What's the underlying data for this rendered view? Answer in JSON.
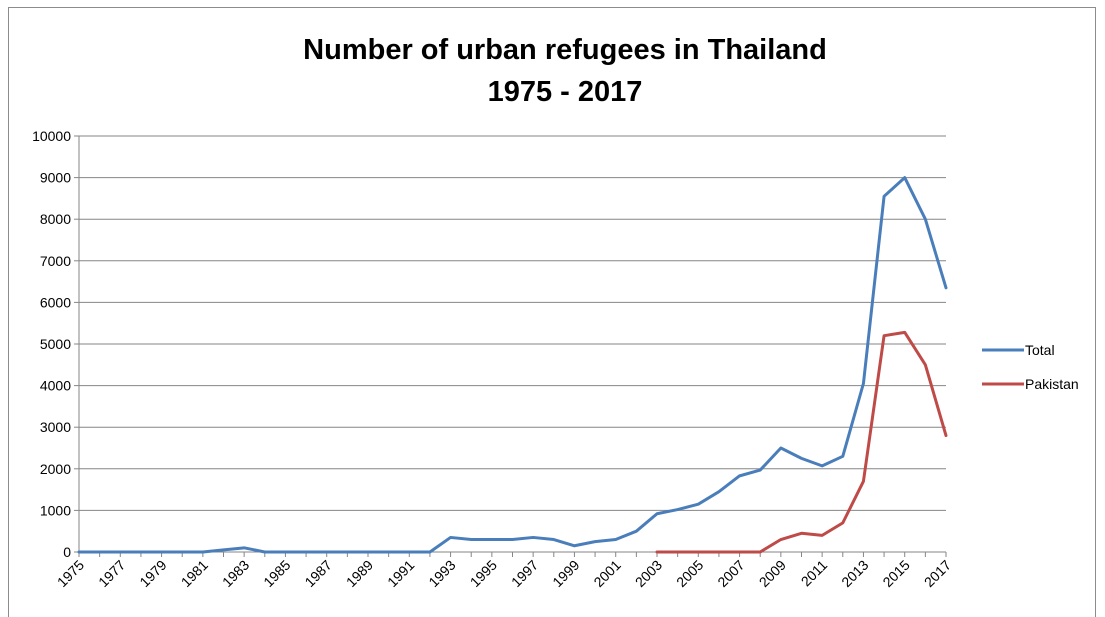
{
  "chart_data": {
    "type": "line",
    "title_lines": [
      "Number of urban refugees in Thailand",
      "1975 - 2017"
    ],
    "xlabel": "",
    "ylabel": "",
    "ylim": [
      0,
      10000
    ],
    "y_ticks": [
      0,
      1000,
      2000,
      3000,
      4000,
      5000,
      6000,
      7000,
      8000,
      9000,
      10000
    ],
    "y_tick_labels": [
      "0",
      "1000",
      "2000",
      "3000",
      "4000",
      "5000",
      "6000",
      "7000",
      "8000",
      "9000",
      "10000"
    ],
    "x": [
      1975,
      1976,
      1977,
      1978,
      1979,
      1980,
      1981,
      1982,
      1983,
      1984,
      1985,
      1986,
      1987,
      1988,
      1989,
      1990,
      1991,
      1992,
      1993,
      1994,
      1995,
      1996,
      1997,
      1998,
      1999,
      2000,
      2001,
      2002,
      2003,
      2004,
      2005,
      2006,
      2007,
      2008,
      2009,
      2010,
      2011,
      2012,
      2013,
      2014,
      2015,
      2016,
      2017
    ],
    "x_tick_labels": [
      "1975",
      "1977",
      "1979",
      "1981",
      "1983",
      "1985",
      "1987",
      "1989",
      "1991",
      "1993",
      "1995",
      "1997",
      "1999",
      "2001",
      "2003",
      "2005",
      "2007",
      "2009",
      "2011",
      "2013",
      "2015",
      "2017"
    ],
    "grid": true,
    "legend_position": "right",
    "series": [
      {
        "name": "Total",
        "color": "#4a7ebb",
        "values": [
          0,
          0,
          0,
          0,
          0,
          0,
          0,
          50,
          100,
          0,
          0,
          0,
          0,
          0,
          0,
          0,
          0,
          0,
          350,
          300,
          300,
          300,
          350,
          300,
          150,
          250,
          300,
          500,
          920,
          1020,
          1150,
          1450,
          1830,
          1970,
          2500,
          2250,
          2070,
          2300,
          4050,
          8550,
          9000,
          8000,
          6350
        ]
      },
      {
        "name": "Pakistan",
        "color": "#be4b48",
        "values": [
          null,
          null,
          null,
          null,
          null,
          null,
          null,
          null,
          null,
          null,
          null,
          null,
          null,
          null,
          null,
          null,
          null,
          null,
          null,
          null,
          null,
          null,
          null,
          null,
          null,
          null,
          null,
          null,
          0,
          0,
          0,
          0,
          0,
          0,
          300,
          450,
          400,
          700,
          1700,
          5200,
          5280,
          4500,
          2800
        ]
      }
    ]
  }
}
